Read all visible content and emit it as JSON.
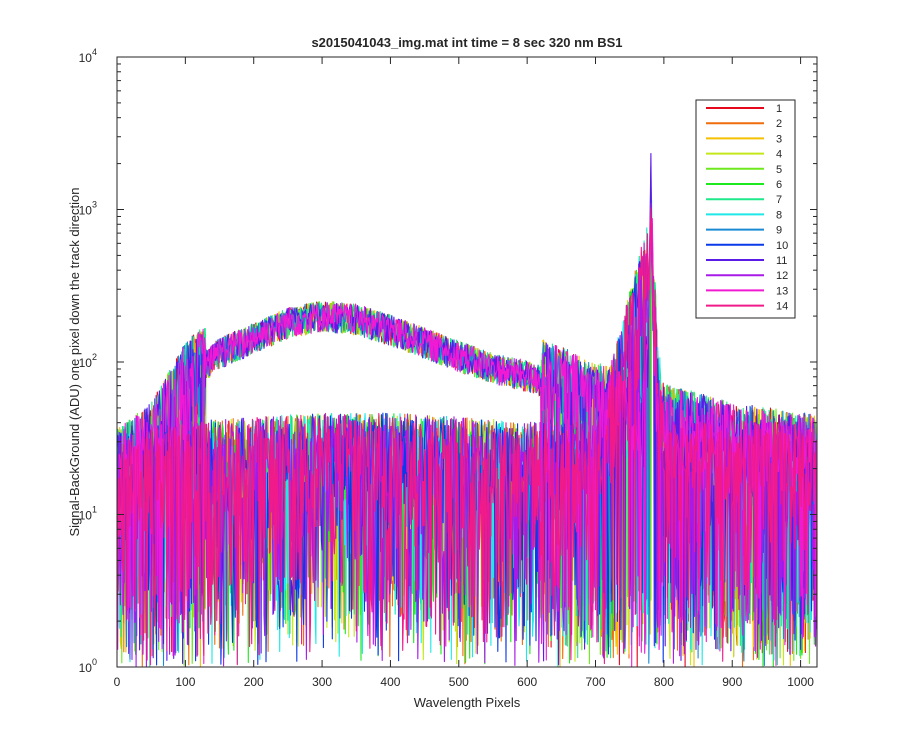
{
  "chart_data": {
    "type": "line",
    "title": "s2015041043_img.mat int time = 8 sec  320 nm BS1",
    "xlabel": "Wavelength Pixels",
    "ylabel": "Signal-BackGround (ADU) one pixel down the track direction",
    "xlim": [
      0,
      1024
    ],
    "ylim": [
      1,
      10000
    ],
    "yscale": "log",
    "x_ticks": [
      "0",
      "100",
      "200",
      "300",
      "400",
      "500",
      "600",
      "700",
      "800",
      "900",
      "1000"
    ],
    "y_ticks": [
      {
        "base": "10",
        "exp": "0"
      },
      {
        "base": "10",
        "exp": "1"
      },
      {
        "base": "10",
        "exp": "2"
      },
      {
        "base": "10",
        "exp": "3"
      },
      {
        "base": "10",
        "exp": "4"
      }
    ],
    "legend_position": "top-right",
    "series": [
      {
        "name": "1",
        "color": "#e6091e",
        "profile": "continuum"
      },
      {
        "name": "2",
        "color": "#ef6d0d",
        "profile": "noise"
      },
      {
        "name": "3",
        "color": "#f4c000",
        "profile": "continuum"
      },
      {
        "name": "4",
        "color": "#c4e81a",
        "profile": "noise"
      },
      {
        "name": "5",
        "color": "#6fe81e",
        "profile": "continuum"
      },
      {
        "name": "6",
        "color": "#1ee81e",
        "profile": "noise"
      },
      {
        "name": "7",
        "color": "#1ee88a",
        "profile": "continuum"
      },
      {
        "name": "8",
        "color": "#1ee8e8",
        "profile": "noise"
      },
      {
        "name": "9",
        "color": "#1a8ad4",
        "profile": "continuum"
      },
      {
        "name": "10",
        "color": "#0a3ae8",
        "profile": "noise"
      },
      {
        "name": "11",
        "color": "#5a1ae8",
        "profile": "continuum"
      },
      {
        "name": "12",
        "color": "#a81ae8",
        "profile": "noise"
      },
      {
        "name": "13",
        "color": "#f01ad4",
        "profile": "continuum"
      },
      {
        "name": "14",
        "color": "#f01a8a",
        "profile": "noise"
      }
    ],
    "continuum_shape": {
      "x": [
        0,
        50,
        100,
        150,
        200,
        250,
        300,
        350,
        400,
        450,
        500,
        550,
        600,
        650,
        700,
        750,
        770,
        778,
        781,
        784,
        790,
        800,
        850,
        900,
        950,
        1024
      ],
      "y": [
        20,
        30,
        75,
        120,
        150,
        190,
        210,
        200,
        170,
        140,
        115,
        95,
        85,
        70,
        55,
        50,
        48,
        200,
        1300,
        300,
        45,
        40,
        35,
        30,
        28,
        25
      ]
    },
    "noise_shape": {
      "x": [
        0,
        100,
        200,
        300,
        400,
        500,
        600,
        700,
        778,
        781,
        784,
        800,
        900,
        1024
      ],
      "y": [
        12,
        14,
        15,
        16,
        16,
        15,
        14,
        14,
        300,
        1100,
        200,
        14,
        14,
        14
      ]
    }
  }
}
